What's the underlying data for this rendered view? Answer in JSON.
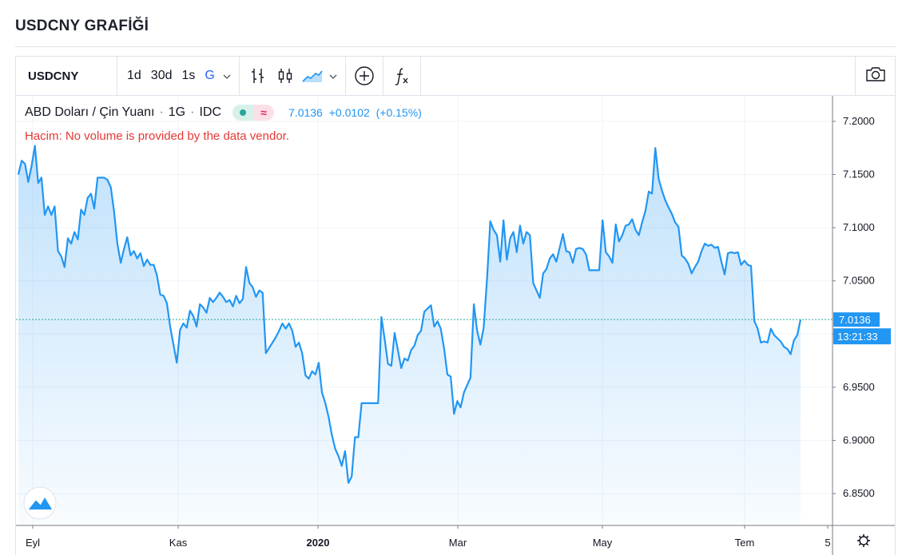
{
  "page": {
    "title": "USDCNY GRAFİĞİ"
  },
  "toolbar": {
    "symbol": "USDCNY",
    "intervals": [
      "1d",
      "30d",
      "1s",
      "G"
    ],
    "active_interval": "G",
    "icons": [
      "bar-type-icon",
      "candle-type-icon",
      "area-type-icon",
      "add-compare-icon",
      "indicators-icon",
      "camera-icon"
    ]
  },
  "legend": {
    "name": "ABD Doları / Çin Yuanı",
    "interval": "1G",
    "source": "IDC",
    "price": "7.0136",
    "change": "+0.0102",
    "change_pct": "(+0.15%)",
    "volume_note": "Hacim: No volume is provided by the data vendor."
  },
  "colors": {
    "line": "#2196f3",
    "accent": "#2962ff",
    "up": "#26a69a",
    "note": "#e53935"
  },
  "price_axis": {
    "ticks": [
      "7.2000",
      "7.1500",
      "7.1000",
      "7.0500",
      "7.0000",
      "6.9500",
      "6.9000",
      "6.8500"
    ],
    "last_price_label": "7.0136",
    "countdown_label": "13:21:33"
  },
  "time_axis": {
    "labels": [
      "Eyl",
      "Kas",
      "2020",
      "Mar",
      "May",
      "Tem",
      "5"
    ]
  },
  "chart_data": {
    "type": "area",
    "title": "ABD Doları / Çin Yuanı",
    "xlabel": "",
    "ylabel": "",
    "ylim": [
      6.82,
      7.224
    ],
    "x_labels": [
      "Eyl",
      "Kas",
      "2020",
      "Mar",
      "May",
      "Tem",
      "5"
    ],
    "y_ticks": [
      7.2,
      7.15,
      7.1,
      7.05,
      7.0,
      6.95,
      6.9,
      6.85
    ],
    "last_value": 7.0136,
    "series": [
      {
        "values": [
          7.15,
          7.163,
          7.16,
          7.143,
          7.158,
          7.177,
          7.142,
          7.147,
          7.112,
          7.12,
          7.112,
          7.12,
          7.078,
          7.073,
          7.063,
          7.09,
          7.085,
          7.096,
          7.089,
          7.117,
          7.112,
          7.128,
          7.132,
          7.118,
          7.147,
          7.147,
          7.147,
          7.145,
          7.138,
          7.115,
          7.085,
          7.067,
          7.08,
          7.091,
          7.074,
          7.078,
          7.071,
          7.076,
          7.064,
          7.07,
          7.065,
          7.065,
          7.055,
          7.037,
          7.036,
          7.029,
          7.007,
          6.99,
          6.973,
          7.004,
          7.01,
          7.006,
          7.022,
          7.017,
          7.007,
          7.028,
          7.025,
          7.02,
          7.034,
          7.03,
          7.034,
          7.039,
          7.035,
          7.03,
          7.032,
          7.026,
          7.036,
          7.029,
          7.033,
          7.063,
          7.048,
          7.044,
          7.035,
          7.041,
          7.039,
          6.982,
          6.987,
          6.992,
          6.997,
          7.003,
          7.01,
          7.005,
          7.01,
          7.003,
          6.988,
          6.992,
          6.982,
          6.961,
          6.958,
          6.965,
          6.962,
          6.973,
          6.945,
          6.935,
          6.922,
          6.905,
          6.892,
          6.885,
          6.876,
          6.89,
          6.86,
          6.866,
          6.903,
          6.903,
          6.935,
          6.935,
          6.935,
          6.935,
          6.935,
          6.935,
          7.016,
          6.995,
          6.972,
          6.97,
          7.001,
          6.985,
          6.968,
          6.977,
          6.975,
          6.985,
          6.989,
          6.999,
          7.003,
          7.021,
          7.024,
          7.027,
          7.007,
          7.012,
          7.005,
          6.986,
          6.962,
          6.96,
          6.925,
          6.937,
          6.931,
          6.945,
          6.952,
          6.959,
          7.028,
          7.003,
          6.99,
          7.006,
          7.052,
          7.106,
          7.098,
          7.093,
          7.068,
          7.107,
          7.07,
          7.09,
          7.096,
          7.077,
          7.102,
          7.085,
          7.096,
          7.093,
          7.048,
          7.041,
          7.034,
          7.057,
          7.061,
          7.071,
          7.075,
          7.068,
          7.081,
          7.094,
          7.078,
          7.077,
          7.067,
          7.08,
          7.081,
          7.08,
          7.075,
          7.06,
          7.06,
          7.06,
          7.06,
          7.107,
          7.077,
          7.073,
          7.067,
          7.103,
          7.087,
          7.093,
          7.102,
          7.103,
          7.108,
          7.098,
          7.093,
          7.105,
          7.116,
          7.134,
          7.132,
          7.175,
          7.146,
          7.135,
          7.126,
          7.119,
          7.113,
          7.105,
          7.101,
          7.074,
          7.071,
          7.066,
          7.057,
          7.063,
          7.068,
          7.078,
          7.085,
          7.083,
          7.084,
          7.081,
          7.082,
          7.068,
          7.056,
          7.076,
          7.077,
          7.076,
          7.077,
          7.065,
          7.069,
          7.065,
          7.064,
          7.012,
          7.005,
          6.992,
          6.993,
          6.992,
          7.005,
          6.999,
          6.996,
          6.993,
          6.988,
          6.986,
          6.981,
          6.994,
          6.999,
          7.0136
        ]
      }
    ]
  }
}
